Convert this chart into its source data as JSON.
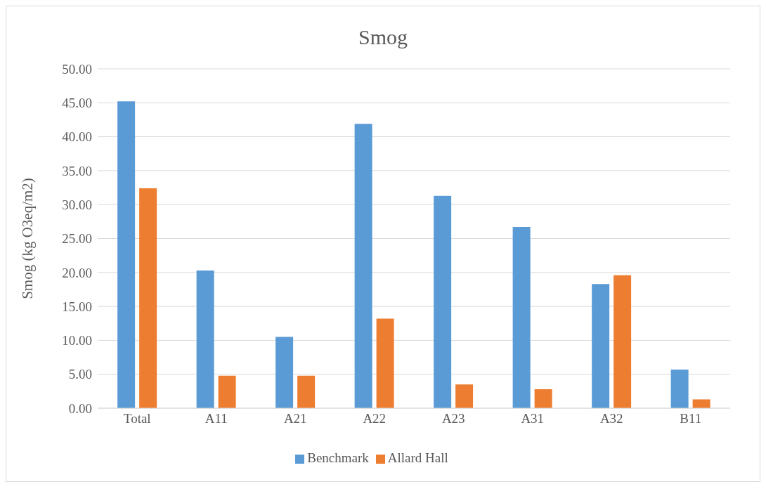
{
  "chart_data": {
    "type": "bar",
    "title": "Smog",
    "ylabel": "Smog (kg O3eq/m2)",
    "categories": [
      "Total",
      "A11",
      "A21",
      "A22",
      "A23",
      "A31",
      "A32",
      "B11"
    ],
    "series": [
      {
        "name": "Benchmark",
        "color": "#5b9bd5",
        "values": [
          45.2,
          20.3,
          10.5,
          41.9,
          31.3,
          26.7,
          18.3,
          5.7
        ]
      },
      {
        "name": "Allard Hall",
        "color": "#ed7d31",
        "values": [
          32.4,
          4.8,
          4.8,
          13.2,
          3.5,
          2.8,
          19.6,
          1.3
        ]
      }
    ],
    "ylim": [
      0,
      50
    ],
    "yticks": [
      {
        "value": 0,
        "label": "0.00"
      },
      {
        "value": 5,
        "label": "5.00"
      },
      {
        "value": 10,
        "label": "10.00"
      },
      {
        "value": 15,
        "label": "15.00"
      },
      {
        "value": 20,
        "label": "20.00"
      },
      {
        "value": 25,
        "label": "25.00"
      },
      {
        "value": 30,
        "label": "30.00"
      },
      {
        "value": 35,
        "label": "35.00"
      },
      {
        "value": 40,
        "label": "40.00"
      },
      {
        "value": 45,
        "label": "45.00"
      },
      {
        "value": 50,
        "label": "50.00"
      }
    ],
    "grid": "y",
    "legend": "bottom"
  }
}
